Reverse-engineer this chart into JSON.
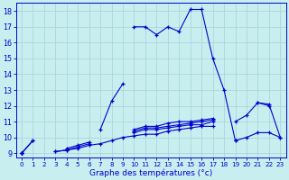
{
  "hours": [
    0,
    1,
    2,
    3,
    4,
    5,
    6,
    7,
    8,
    9,
    10,
    11,
    12,
    13,
    14,
    15,
    16,
    17,
    18,
    19,
    20,
    21,
    22,
    23
  ],
  "line_main": [
    9.0,
    9.8,
    null,
    null,
    null,
    null,
    null,
    null,
    null,
    null,
    17.0,
    17.0,
    16.5,
    17.0,
    16.7,
    18.1,
    18.1,
    15.0,
    13.0,
    9.8,
    null,
    12.2,
    12.0,
    null
  ],
  "line_dotted": [
    9.0,
    9.8,
    null,
    null,
    null,
    null,
    null,
    null,
    null,
    null,
    17.0,
    17.0,
    16.5,
    17.0,
    16.7,
    18.1,
    18.1,
    15.0,
    13.0,
    9.8,
    null,
    null,
    null,
    null
  ],
  "line_mid": [
    null,
    null,
    null,
    null,
    null,
    null,
    null,
    10.5,
    12.3,
    13.4,
    null,
    null,
    null,
    null,
    null,
    null,
    null,
    null,
    null,
    null,
    null,
    null,
    null,
    null
  ],
  "line_a": [
    9.0,
    9.8,
    null,
    9.1,
    9.2,
    9.3,
    9.5,
    9.6,
    9.8,
    10.0,
    10.1,
    10.2,
    10.2,
    10.4,
    10.5,
    10.6,
    10.7,
    10.7,
    null,
    9.8,
    10.0,
    10.3,
    10.3,
    10.0
  ],
  "line_b": [
    9.0,
    null,
    null,
    9.1,
    9.2,
    9.4,
    9.6,
    null,
    null,
    null,
    10.3,
    10.5,
    10.5,
    10.6,
    10.7,
    10.8,
    10.8,
    11.0,
    null,
    null,
    null,
    null,
    null,
    null
  ],
  "line_c": [
    9.0,
    null,
    null,
    null,
    9.3,
    9.5,
    9.7,
    null,
    null,
    null,
    10.4,
    10.6,
    10.6,
    10.7,
    10.8,
    10.9,
    11.0,
    11.1,
    null,
    11.0,
    11.4,
    12.2,
    12.1,
    10.0
  ],
  "line_d": [
    9.0,
    null,
    null,
    null,
    null,
    null,
    null,
    null,
    null,
    null,
    10.5,
    10.7,
    10.7,
    10.9,
    11.0,
    11.0,
    11.1,
    11.2,
    null,
    null,
    null,
    null,
    null,
    null
  ],
  "bg_color": "#c8eef0",
  "grid_color": "#a8d8da",
  "line_color": "#0000cc",
  "xlabel": "Graphe des températures (°c)",
  "xlim": [
    -0.5,
    23.5
  ],
  "ylim": [
    8.7,
    18.5
  ],
  "yticks": [
    9,
    10,
    11,
    12,
    13,
    14,
    15,
    16,
    17,
    18
  ],
  "xticks": [
    0,
    1,
    2,
    3,
    4,
    5,
    6,
    7,
    8,
    9,
    10,
    11,
    12,
    13,
    14,
    15,
    16,
    17,
    18,
    19,
    20,
    21,
    22,
    23
  ]
}
